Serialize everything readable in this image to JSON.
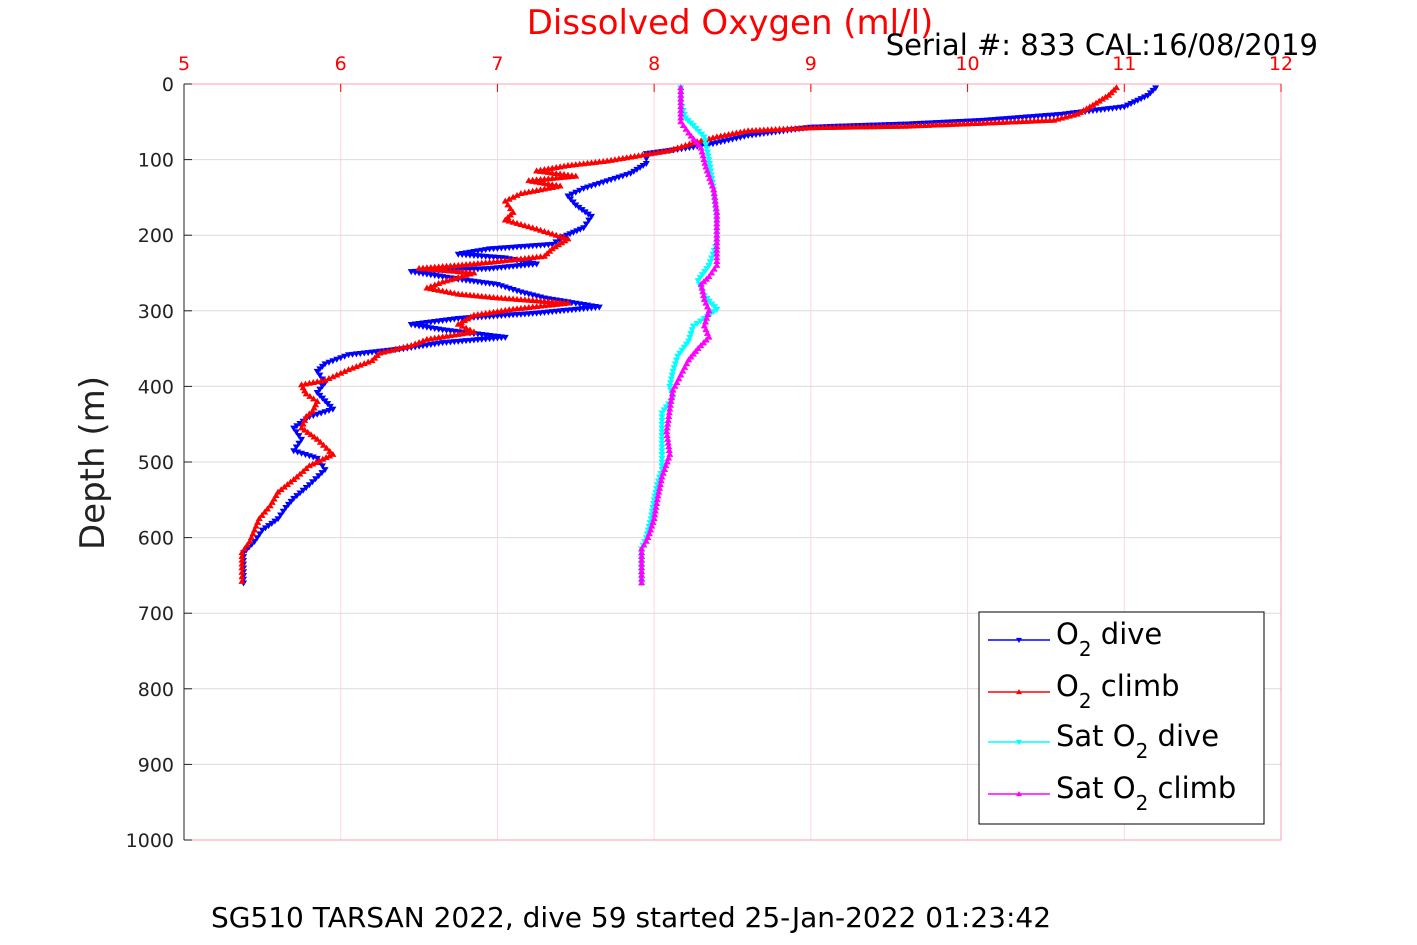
{
  "chart_data": {
    "type": "line",
    "title": "Dissolved Oxygen (ml/l)",
    "serial_text": "Serial #: 833  CAL:16/08/2019",
    "caption": "SG510 TARSAN 2022, dive 59 started 25-Jan-2022 01:23:42",
    "ylabel": "Depth (m)",
    "xlim": [
      5,
      12
    ],
    "ylim": [
      0,
      1000
    ],
    "y_reversed": true,
    "x_axis_position": "top",
    "xticks": [
      "5",
      "6",
      "7",
      "8",
      "9",
      "10",
      "11",
      "12"
    ],
    "yticks": [
      "0",
      "100",
      "200",
      "300",
      "400",
      "500",
      "600",
      "700",
      "800",
      "900",
      "1000"
    ],
    "grid": true,
    "legend_position": "bottom-right",
    "series": [
      {
        "name": "O2 dive",
        "legend": {
          "base": "O",
          "sub": "2",
          "rest": " dive"
        },
        "color": "#0000ff",
        "marker": "down-triangle",
        "points": [
          [
            11.2,
            5
          ],
          [
            11.15,
            15
          ],
          [
            11.0,
            30
          ],
          [
            10.6,
            40
          ],
          [
            10.1,
            48
          ],
          [
            9.6,
            53
          ],
          [
            9.0,
            57
          ],
          [
            8.6,
            68
          ],
          [
            8.35,
            80
          ],
          [
            8.1,
            88
          ],
          [
            7.95,
            92
          ],
          [
            7.95,
            105
          ],
          [
            7.85,
            118
          ],
          [
            7.7,
            128
          ],
          [
            7.55,
            138
          ],
          [
            7.45,
            148
          ],
          [
            7.5,
            160
          ],
          [
            7.6,
            175
          ],
          [
            7.55,
            190
          ],
          [
            7.42,
            202
          ],
          [
            7.35,
            212
          ],
          [
            6.95,
            218
          ],
          [
            6.75,
            225
          ],
          [
            7.05,
            230
          ],
          [
            7.25,
            238
          ],
          [
            6.95,
            244
          ],
          [
            6.45,
            248
          ],
          [
            6.75,
            258
          ],
          [
            7.0,
            265
          ],
          [
            7.15,
            275
          ],
          [
            7.3,
            283
          ],
          [
            7.65,
            295
          ],
          [
            7.25,
            303
          ],
          [
            6.75,
            310
          ],
          [
            6.45,
            318
          ],
          [
            6.65,
            325
          ],
          [
            7.05,
            335
          ],
          [
            6.65,
            342
          ],
          [
            6.4,
            350
          ],
          [
            6.05,
            358
          ],
          [
            5.9,
            370
          ],
          [
            5.85,
            380
          ],
          [
            5.9,
            395
          ],
          [
            5.85,
            408
          ],
          [
            5.95,
            430
          ],
          [
            5.8,
            440
          ],
          [
            5.7,
            455
          ],
          [
            5.75,
            470
          ],
          [
            5.7,
            485
          ],
          [
            5.85,
            495
          ],
          [
            5.9,
            510
          ],
          [
            5.8,
            530
          ],
          [
            5.7,
            548
          ],
          [
            5.65,
            560
          ],
          [
            5.6,
            575
          ],
          [
            5.5,
            590
          ],
          [
            5.45,
            605
          ],
          [
            5.38,
            620
          ],
          [
            5.38,
            640
          ],
          [
            5.38,
            660
          ]
        ]
      },
      {
        "name": "O2 climb",
        "legend": {
          "base": "O",
          "sub": "2",
          "rest": " climb"
        },
        "color": "#ff0000",
        "marker": "up-triangle",
        "points": [
          [
            10.95,
            5
          ],
          [
            10.9,
            15
          ],
          [
            10.8,
            28
          ],
          [
            10.7,
            40
          ],
          [
            10.55,
            48
          ],
          [
            10.1,
            52
          ],
          [
            9.6,
            56
          ],
          [
            9.0,
            58
          ],
          [
            8.6,
            62
          ],
          [
            8.4,
            70
          ],
          [
            8.25,
            78
          ],
          [
            8.1,
            88
          ],
          [
            7.9,
            95
          ],
          [
            7.7,
            102
          ],
          [
            7.45,
            108
          ],
          [
            7.25,
            115
          ],
          [
            7.5,
            122
          ],
          [
            7.2,
            128
          ],
          [
            7.4,
            135
          ],
          [
            7.15,
            145
          ],
          [
            7.05,
            155
          ],
          [
            7.1,
            170
          ],
          [
            7.05,
            180
          ],
          [
            7.25,
            192
          ],
          [
            7.45,
            205
          ],
          [
            7.35,
            218
          ],
          [
            7.3,
            228
          ],
          [
            7.0,
            235
          ],
          [
            6.75,
            240
          ],
          [
            6.5,
            244
          ],
          [
            6.85,
            250
          ],
          [
            6.65,
            262
          ],
          [
            6.55,
            270
          ],
          [
            6.75,
            278
          ],
          [
            7.0,
            283
          ],
          [
            7.45,
            290
          ],
          [
            7.1,
            298
          ],
          [
            6.85,
            306
          ],
          [
            6.75,
            318
          ],
          [
            6.85,
            328
          ],
          [
            6.55,
            338
          ],
          [
            6.45,
            346
          ],
          [
            6.25,
            356
          ],
          [
            6.2,
            366
          ],
          [
            6.05,
            378
          ],
          [
            5.9,
            392
          ],
          [
            5.75,
            398
          ],
          [
            5.78,
            410
          ],
          [
            5.85,
            420
          ],
          [
            5.82,
            433
          ],
          [
            5.78,
            440
          ],
          [
            5.75,
            455
          ],
          [
            5.85,
            470
          ],
          [
            5.95,
            490
          ],
          [
            5.8,
            505
          ],
          [
            5.72,
            520
          ],
          [
            5.6,
            540
          ],
          [
            5.55,
            558
          ],
          [
            5.48,
            575
          ],
          [
            5.45,
            590
          ],
          [
            5.42,
            605
          ],
          [
            5.37,
            620
          ],
          [
            5.37,
            640
          ],
          [
            5.37,
            658
          ]
        ]
      },
      {
        "name": "Sat O2 dive",
        "legend": {
          "base": "Sat O",
          "sub": "2",
          "rest": " dive"
        },
        "color": "#00ffff",
        "marker": "down-triangle",
        "points": [
          [
            8.17,
            5
          ],
          [
            8.17,
            25
          ],
          [
            8.2,
            45
          ],
          [
            8.25,
            55
          ],
          [
            8.32,
            70
          ],
          [
            8.35,
            100
          ],
          [
            8.38,
            140
          ],
          [
            8.4,
            180
          ],
          [
            8.4,
            210
          ],
          [
            8.35,
            240
          ],
          [
            8.28,
            260
          ],
          [
            8.32,
            280
          ],
          [
            8.4,
            298
          ],
          [
            8.32,
            310
          ],
          [
            8.25,
            320
          ],
          [
            8.22,
            340
          ],
          [
            8.15,
            360
          ],
          [
            8.12,
            380
          ],
          [
            8.1,
            400
          ],
          [
            8.12,
            415
          ],
          [
            8.05,
            435
          ],
          [
            8.05,
            460
          ],
          [
            8.05,
            490
          ],
          [
            8.05,
            510
          ],
          [
            8.02,
            530
          ],
          [
            8.0,
            550
          ],
          [
            7.98,
            575
          ],
          [
            7.95,
            600
          ],
          [
            7.92,
            615
          ],
          [
            7.92,
            640
          ],
          [
            7.92,
            660
          ]
        ]
      },
      {
        "name": "Sat O2 climb",
        "legend": {
          "base": "Sat O",
          "sub": "2",
          "rest": " climb"
        },
        "color": "#ff00ff",
        "marker": "up-triangle",
        "points": [
          [
            8.17,
            5
          ],
          [
            8.17,
            50
          ],
          [
            8.22,
            65
          ],
          [
            8.3,
            85
          ],
          [
            8.33,
            110
          ],
          [
            8.38,
            140
          ],
          [
            8.4,
            170
          ],
          [
            8.4,
            200
          ],
          [
            8.4,
            240
          ],
          [
            8.35,
            255
          ],
          [
            8.3,
            265
          ],
          [
            8.32,
            285
          ],
          [
            8.35,
            300
          ],
          [
            8.32,
            320
          ],
          [
            8.35,
            335
          ],
          [
            8.28,
            350
          ],
          [
            8.22,
            365
          ],
          [
            8.17,
            385
          ],
          [
            8.12,
            405
          ],
          [
            8.1,
            430
          ],
          [
            8.08,
            460
          ],
          [
            8.1,
            490
          ],
          [
            8.05,
            520
          ],
          [
            8.02,
            550
          ],
          [
            8.0,
            575
          ],
          [
            7.97,
            595
          ],
          [
            7.95,
            605
          ],
          [
            7.92,
            615
          ],
          [
            7.92,
            640
          ],
          [
            7.92,
            660
          ]
        ]
      }
    ]
  }
}
